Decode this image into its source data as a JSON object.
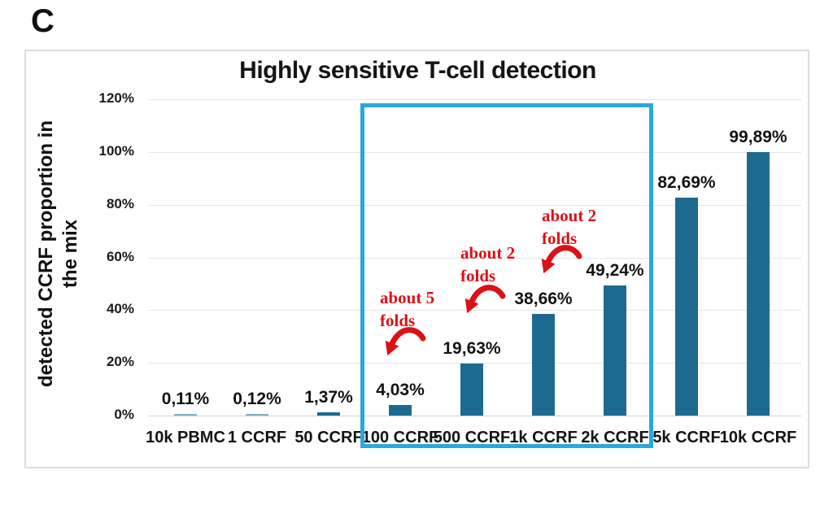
{
  "panel_label": "C",
  "chart_data": {
    "type": "bar",
    "title": "Highly sensitive T-cell detection",
    "ylabel_line1": "detected CCRF proportion in",
    "ylabel_line2": "the mix",
    "xlabel": "",
    "categories": [
      "10k PBMC",
      "1 CCRF",
      "50 CCRF",
      "100 CCRF",
      "500 CCRF",
      "1k CCRF",
      "2k CCRF",
      "5k CCRF",
      "10k CCRF"
    ],
    "values": [
      0.11,
      0.12,
      1.37,
      4.03,
      19.63,
      38.66,
      49.24,
      82.69,
      99.89
    ],
    "value_labels": [
      "0,11%",
      "0,12%",
      "1,37%",
      "4,03%",
      "19,63%",
      "38,66%",
      "49,24%",
      "82,69%",
      "99,89%"
    ],
    "ylim": [
      0,
      120
    ],
    "grid": true,
    "legend": false,
    "y_ticks": [
      {
        "value": 0,
        "label": "0%"
      },
      {
        "value": 20,
        "label": "20%"
      },
      {
        "value": 40,
        "label": "40%"
      },
      {
        "value": 60,
        "label": "60%"
      },
      {
        "value": 80,
        "label": "80%"
      },
      {
        "value": 100,
        "label": "100%"
      },
      {
        "value": 120,
        "label": "120%"
      }
    ],
    "bar_color": "#1d6a90",
    "annotation_color": "#dd1016",
    "highlight_box": {
      "color": "#2aa7dd",
      "from_category": "100 CCRF",
      "to_category": "2k CCRF"
    },
    "annotations": [
      {
        "line1": "about 5",
        "line2": "folds"
      },
      {
        "line1": "about 2",
        "line2": "folds"
      },
      {
        "line1": "about 2",
        "line2": "folds"
      }
    ]
  }
}
